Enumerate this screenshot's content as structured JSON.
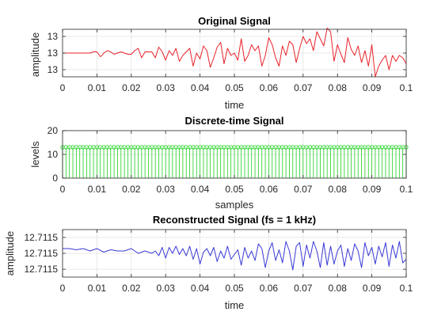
{
  "colors": {
    "original": "#e8232b",
    "discrete": "#1ed11e",
    "reconstructed": "#3a3ad6",
    "grid": "#e3e3e3",
    "axis": "#262626"
  },
  "chart_data": [
    {
      "type": "line",
      "title": "Original Signal",
      "xlabel": "time",
      "ylabel": "amplitude",
      "xlim": [
        0,
        0.1
      ],
      "ylim": [
        -1,
        1
      ],
      "x_ticks": [
        0,
        0.01,
        0.02,
        0.03,
        0.04,
        0.05,
        0.06,
        0.07,
        0.08,
        0.09,
        0.1
      ],
      "x_tick_labels": [
        "0",
        "0.01",
        "0.02",
        "0.03",
        "0.04",
        "0.05",
        "0.06",
        "0.07",
        "0.08",
        "0.09",
        "0.1"
      ],
      "y_ticks": [
        0.7,
        0,
        -0.7
      ],
      "y_tick_labels": [
        "13",
        "13",
        "13"
      ],
      "grid": true,
      "x": [
        0,
        0.002,
        0.004,
        0.006,
        0.008,
        0.009,
        0.0095,
        0.01,
        0.011,
        0.0115,
        0.012,
        0.013,
        0.014,
        0.015,
        0.016,
        0.017,
        0.018,
        0.019,
        0.02,
        0.021,
        0.022,
        0.023,
        0.024,
        0.025,
        0.026,
        0.027,
        0.028,
        0.029,
        0.03,
        0.031,
        0.032,
        0.033,
        0.034,
        0.035,
        0.036,
        0.037,
        0.038,
        0.039,
        0.04,
        0.041,
        0.042,
        0.043,
        0.044,
        0.045,
        0.046,
        0.047,
        0.048,
        0.049,
        0.05,
        0.051,
        0.052,
        0.053,
        0.054,
        0.055,
        0.056,
        0.057,
        0.058,
        0.059,
        0.06,
        0.061,
        0.062,
        0.063,
        0.064,
        0.065,
        0.066,
        0.067,
        0.068,
        0.069,
        0.07,
        0.071,
        0.072,
        0.073,
        0.074,
        0.075,
        0.076,
        0.077,
        0.078,
        0.079,
        0.08,
        0.081,
        0.082,
        0.083,
        0.084,
        0.085,
        0.086,
        0.087,
        0.088,
        0.089,
        0.09,
        0.091,
        0.092,
        0.093,
        0.094,
        0.095,
        0.096,
        0.097,
        0.098,
        0.099,
        0.1
      ],
      "series": [
        {
          "values": [
            0,
            0,
            0,
            0,
            0,
            0.05,
            0.06,
            0.05,
            -0.15,
            -0.1,
            0,
            0.1,
            0.05,
            -0.05,
            0,
            0.05,
            0,
            -0.05,
            -0.05,
            0.1,
            0.2,
            -0.2,
            0.05,
            0.05,
            0.05,
            -0.2,
            0.25,
            0.05,
            -0.3,
            0.1,
            -0.1,
            0.2,
            -0.35,
            -0.1,
            0.05,
            0.2,
            -0.55,
            0,
            -0.25,
            0.3,
            0.1,
            -0.6,
            -0.2,
            0.25,
            0.45,
            -0.45,
            0.2,
            -0.1,
            0,
            -0.3,
            0.6,
            -0.35,
            -0.1,
            0.35,
            0.1,
            0.3,
            -0.55,
            -0.1,
            0.65,
            0.35,
            -0.2,
            -0.55,
            0.3,
            -0.1,
            0.5,
            0.35,
            -0.4,
            0.2,
            0.7,
            0.4,
            0.6,
            0.1,
            0.9,
            0.6,
            0.3,
            1.05,
            0.9,
            -0.35,
            0.35,
            -0.05,
            -0.4,
            0.65,
            0.15,
            -0.1,
            0.3,
            -0.4,
            0.1,
            -0.55,
            0.35,
            -1.0,
            -0.55,
            -0.3,
            -0.1,
            -0.7,
            -0.1,
            -0.35,
            -0.1,
            -0.2,
            -0.45
          ]
        }
      ]
    },
    {
      "type": "stem",
      "title": "Discrete-time Signal",
      "xlabel": "samples",
      "ylabel": "levels",
      "xlim": [
        0,
        0.1
      ],
      "ylim": [
        0,
        20
      ],
      "x_ticks": [
        0,
        0.01,
        0.02,
        0.03,
        0.04,
        0.05,
        0.06,
        0.07,
        0.08,
        0.09,
        0.1
      ],
      "x_tick_labels": [
        "0",
        "0.01",
        "0.02",
        "0.03",
        "0.04",
        "0.05",
        "0.06",
        "0.07",
        "0.08",
        "0.09",
        "0.1"
      ],
      "y_ticks": [
        0,
        10,
        20
      ],
      "y_tick_labels": [
        "0",
        "10",
        "20"
      ],
      "grid": true,
      "sample_step": 0.001,
      "sample_count": 101,
      "level": 13
    },
    {
      "type": "line",
      "title": "Reconstructed Signal (fs = 1 kHz)",
      "xlabel": "time",
      "ylabel": "amplitude",
      "xlim": [
        0,
        0.1
      ],
      "ylim": [
        -1,
        1
      ],
      "x_ticks": [
        0,
        0.01,
        0.02,
        0.03,
        0.04,
        0.05,
        0.06,
        0.07,
        0.08,
        0.09,
        0.1
      ],
      "x_tick_labels": [
        "0",
        "0.01",
        "0.02",
        "0.03",
        "0.04",
        "0.05",
        "0.06",
        "0.07",
        "0.08",
        "0.09",
        "0.1"
      ],
      "y_ticks": [
        0.67,
        0,
        -0.67
      ],
      "y_tick_labels": [
        "12.7115",
        "12.7115",
        "12.7115"
      ],
      "grid": true,
      "x": [
        0,
        0.002,
        0.004,
        0.006,
        0.008,
        0.01,
        0.012,
        0.014,
        0.016,
        0.018,
        0.02,
        0.022,
        0.024,
        0.026,
        0.027,
        0.028,
        0.029,
        0.03,
        0.031,
        0.032,
        0.033,
        0.034,
        0.035,
        0.036,
        0.037,
        0.038,
        0.039,
        0.04,
        0.041,
        0.042,
        0.043,
        0.044,
        0.045,
        0.046,
        0.047,
        0.048,
        0.049,
        0.05,
        0.051,
        0.052,
        0.053,
        0.054,
        0.055,
        0.056,
        0.057,
        0.058,
        0.059,
        0.06,
        0.061,
        0.062,
        0.063,
        0.064,
        0.065,
        0.066,
        0.067,
        0.068,
        0.069,
        0.07,
        0.071,
        0.072,
        0.073,
        0.074,
        0.075,
        0.076,
        0.077,
        0.078,
        0.079,
        0.08,
        0.081,
        0.082,
        0.083,
        0.084,
        0.085,
        0.086,
        0.087,
        0.088,
        0.089,
        0.09,
        0.091,
        0.092,
        0.093,
        0.094,
        0.095,
        0.096,
        0.097,
        0.098,
        0.099,
        0.1
      ],
      "series": [
        {
          "values": [
            0.2,
            0.2,
            0.15,
            0.2,
            0.1,
            0.2,
            0.05,
            0.15,
            0.1,
            0.1,
            0.2,
            0,
            0.1,
            0,
            0.1,
            -0.1,
            0.25,
            -0.2,
            0.25,
            0,
            0.3,
            -0.05,
            0.2,
            -0.1,
            0.3,
            -0.25,
            0.2,
            -0.45,
            0.05,
            0.2,
            -0.1,
            0.25,
            -0.35,
            0.1,
            -0.2,
            0.3,
            -0.25,
            -0.05,
            0.15,
            -0.5,
            0.25,
            -0.2,
            0.1,
            -0.3,
            0.4,
            0.2,
            -0.6,
            0.1,
            0.45,
            -0.3,
            0.15,
            -0.4,
            0.5,
            0.1,
            -0.7,
            0.3,
            0.45,
            -0.55,
            0.35,
            -0.2,
            0.5,
            0.1,
            -0.6,
            0.45,
            -0.5,
            0.3,
            -0.45,
            0.1,
            0.35,
            -0.55,
            0.2,
            -0.3,
            0.4,
            0.1,
            -0.6,
            0.45,
            -0.1,
            0.25,
            -0.45,
            0.3,
            -0.15,
            0.45,
            -0.55,
            0.35,
            -0.2,
            0.5,
            -0.4,
            -0.25
          ]
        }
      ]
    }
  ]
}
